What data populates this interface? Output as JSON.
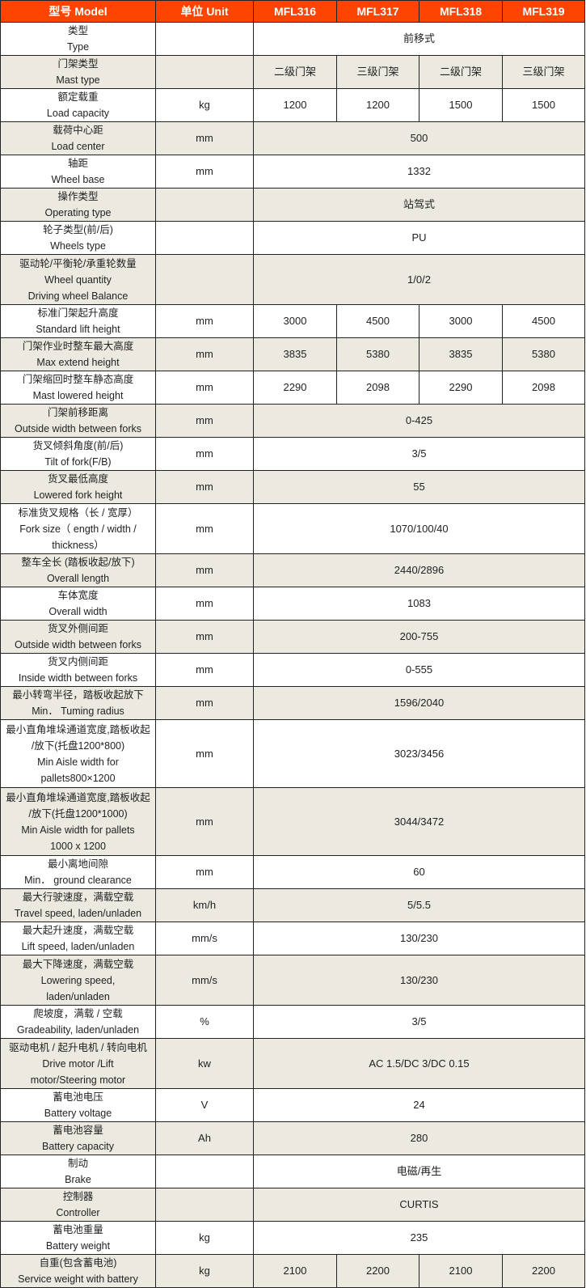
{
  "header": {
    "model": "型号 Model",
    "unit": "单位 Unit",
    "models": [
      "MFL316",
      "MFL317",
      "MFL318",
      "MFL319"
    ]
  },
  "rows": [
    {
      "label": [
        "类型",
        "Type"
      ],
      "unit": "",
      "values": [
        "前移式"
      ]
    },
    {
      "label": [
        "门架类型",
        "Mast type"
      ],
      "unit": "",
      "values": [
        "二级门架",
        "三级门架",
        "二级门架",
        "三级门架"
      ]
    },
    {
      "label": [
        "额定载重",
        "Load capacity"
      ],
      "unit": "kg",
      "values": [
        "1200",
        "1200",
        "1500",
        "1500"
      ]
    },
    {
      "label": [
        "载荷中心距",
        "Load center"
      ],
      "unit": "mm",
      "values": [
        "500"
      ]
    },
    {
      "label": [
        "轴距",
        "Wheel base"
      ],
      "unit": "mm",
      "values": [
        "1332"
      ]
    },
    {
      "label": [
        "操作类型",
        "Operating type"
      ],
      "unit": "",
      "values": [
        "站驾式"
      ]
    },
    {
      "label": [
        "轮子类型(前/后)",
        "Wheels type"
      ],
      "unit": "",
      "values": [
        "PU"
      ]
    },
    {
      "label": [
        "驱动轮/平衡轮/承重轮数量",
        "Wheel quantity",
        "Driving wheel Balance"
      ],
      "unit": "",
      "values": [
        "1/0/2"
      ]
    },
    {
      "label": [
        "标准门架起升高度",
        "Standard lift height"
      ],
      "unit": "mm",
      "values": [
        "3000",
        "4500",
        "3000",
        "4500"
      ]
    },
    {
      "label": [
        "门架作业时整车最大高度",
        "Max extend height"
      ],
      "unit": "mm",
      "values": [
        "3835",
        "5380",
        "3835",
        "5380"
      ]
    },
    {
      "label": [
        "门架缩回时整车静态高度",
        "Mast lowered height"
      ],
      "unit": "mm",
      "values": [
        "2290",
        "2098",
        "2290",
        "2098"
      ]
    },
    {
      "label": [
        "门架前移距离",
        "Outside width between forks"
      ],
      "unit": "mm",
      "values": [
        "0-425"
      ]
    },
    {
      "label": [
        "货叉倾斜角度(前/后)",
        "Tilt of fork(F/B)"
      ],
      "unit": "mm",
      "values": [
        "3/5"
      ]
    },
    {
      "label": [
        "货叉最低高度",
        "Lowered fork height"
      ],
      "unit": "mm",
      "values": [
        "55"
      ]
    },
    {
      "label": [
        "标准货叉规格（长 / 宽厚）",
        "Fork size（  ength / width /",
        "thickness）"
      ],
      "unit": "mm",
      "values": [
        "1070/100/40"
      ]
    },
    {
      "label": [
        "整车全长 (踏板收起/放下)",
        "Overall length"
      ],
      "unit": "mm",
      "values": [
        "2440/2896"
      ]
    },
    {
      "label": [
        "车体宽度",
        "Overall width"
      ],
      "unit": "mm",
      "values": [
        "1083"
      ]
    },
    {
      "label": [
        "货叉外侧间距",
        "Outside width between forks"
      ],
      "unit": "mm",
      "values": [
        "200-755"
      ]
    },
    {
      "label": [
        "货叉内侧间距",
        "Inside width between forks"
      ],
      "unit": "mm",
      "values": [
        "0-555"
      ]
    },
    {
      "label": [
        "最小转弯半径，踏板收起放下",
        "Min． Tuming radius"
      ],
      "unit": "mm",
      "values": [
        "1596/2040"
      ]
    },
    {
      "label": [
        "最小直角堆垛通道宽度,踏板收起",
        "/放下(托盘1200*800)",
        "Min Aisle width for",
        "pallets800×1200"
      ],
      "unit": "mm",
      "values": [
        "3023/3456"
      ]
    },
    {
      "label": [
        "最小直角堆垛通道宽度,踏板收起",
        "/放下(托盘1200*1000)",
        "Min Aisle width for pallets",
        "1000 x 1200"
      ],
      "unit": "mm",
      "values": [
        "3044/3472"
      ]
    },
    {
      "label": [
        "最小离地间隙",
        "Min． ground clearance"
      ],
      "unit": "mm",
      "values": [
        "60"
      ]
    },
    {
      "label": [
        "最大行驶速度，满载空载",
        "Travel speed, laden/unladen"
      ],
      "unit": "km/h",
      "values": [
        "5/5.5"
      ]
    },
    {
      "label": [
        "最大起升速度，满载空载",
        "Lift speed, laden/unladen"
      ],
      "unit": "mm/s",
      "values": [
        "130/230"
      ]
    },
    {
      "label": [
        "最大下降速度，满载空载",
        "Lowering speed,",
        "laden/unladen"
      ],
      "unit": "mm/s",
      "values": [
        "130/230"
      ]
    },
    {
      "label": [
        "爬坡度，满载 / 空载",
        "Gradeability, laden/unladen"
      ],
      "unit": "%",
      "values": [
        "3/5"
      ]
    },
    {
      "label": [
        "驱动电机 / 起升电机 / 转向电机",
        "Drive motor /Lift",
        "motor/Steering motor"
      ],
      "unit": "kw",
      "values": [
        "AC 1.5/DC 3/DC 0.15"
      ]
    },
    {
      "label": [
        "蓄电池电压",
        "Battery voltage"
      ],
      "unit": "V",
      "values": [
        "24"
      ]
    },
    {
      "label": [
        "蓄电池容量",
        "Battery capacity"
      ],
      "unit": "Ah",
      "values": [
        "280"
      ]
    },
    {
      "label": [
        "制动",
        "Brake"
      ],
      "unit": "",
      "values": [
        "电磁/再生"
      ]
    },
    {
      "label": [
        "控制器",
        "Controller"
      ],
      "unit": "",
      "values": [
        "CURTIS"
      ]
    },
    {
      "label": [
        "蓄电池重量",
        "Battery weight"
      ],
      "unit": "kg",
      "values": [
        "235"
      ]
    },
    {
      "label": [
        "自重(包含蓄电池)",
        "Service weight with battery"
      ],
      "unit": "kg",
      "values": [
        "2100",
        "2200",
        "2100",
        "2200"
      ]
    }
  ],
  "colors": {
    "header_bg": "#fd4400",
    "header_text": "#ffffff",
    "row_alt": "#ece9e0"
  }
}
